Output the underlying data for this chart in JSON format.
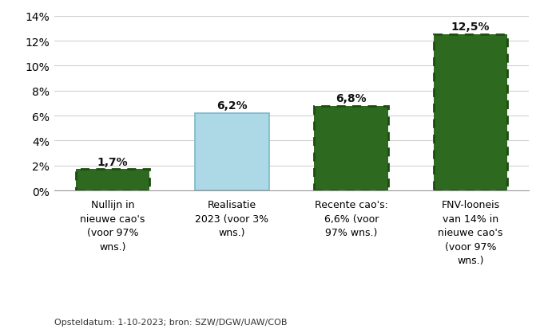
{
  "categories": [
    "Nullijn in\nnieuwe cao's\n(voor 97%\nwns.)",
    "Realisatie\n2023 (voor 3%\nwns.)",
    "Recente cao's:\n6,6% (voor\n97% wns.)",
    "FNV-looneis\nvan 14% in\nnieuwe cao's\n(voor 97%\nwns.)"
  ],
  "values": [
    1.7,
    6.2,
    6.8,
    12.5
  ],
  "labels": [
    "1,7%",
    "6,2%",
    "6,8%",
    "12,5%"
  ],
  "bar_colors": [
    "#2d6a1f",
    "#add8e6",
    "#2d6a1f",
    "#2d6a1f"
  ],
  "dashed_edges": [
    true,
    false,
    true,
    true
  ],
  "ylim": [
    0,
    14
  ],
  "yticks": [
    0,
    2,
    4,
    6,
    8,
    10,
    12,
    14
  ],
  "ytick_labels": [
    "0%",
    "2%",
    "4%",
    "6%",
    "8%",
    "10%",
    "12%",
    "14%"
  ],
  "footnote": "Opsteldatum: 1-10-2023; bron: SZW/DGW/UAW/COB",
  "background_color": "#ffffff",
  "grid_color": "#d0d0d0",
  "label_fontsize": 10,
  "tick_fontsize": 10,
  "cat_fontsize": 9,
  "footnote_fontsize": 8,
  "bar_width": 0.62,
  "dark_green": "#2d6a1f",
  "dark_green_edge": "#1e4d0f",
  "light_blue": "#add8e6",
  "light_blue_edge": "#7ab8cc"
}
